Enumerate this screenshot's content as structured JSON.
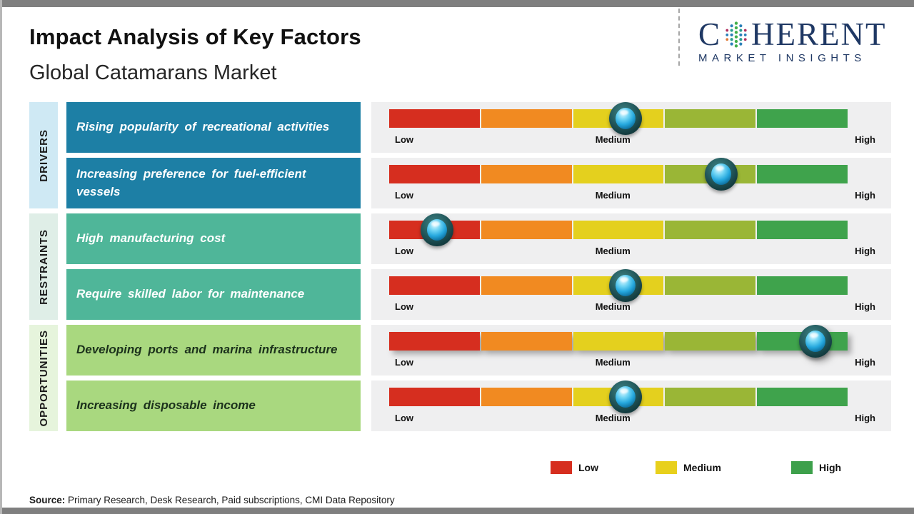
{
  "header": {
    "title": "Impact Analysis of Key Factors",
    "subtitle": "Global Catamarans Market",
    "logo": {
      "brand_first_letter": "C",
      "brand_rest": "HERENT",
      "tagline": "MARKET INSIGHTS",
      "brand_color": "#1f3864"
    }
  },
  "scale_labels": {
    "low": "Low",
    "medium": "Medium",
    "high": "High"
  },
  "categories": [
    {
      "id": "drivers",
      "label": "DRIVERS",
      "strip_color": "#cfe9f4",
      "box_color": "#1d7fa5",
      "text_color": "#ffffff"
    },
    {
      "id": "restraints",
      "label": "RESTRAINTS",
      "strip_color": "#dfeee7",
      "box_color": "#4fb699",
      "text_color": "#ffffff"
    },
    {
      "id": "opportunities",
      "label": "OPPORTUNITIES",
      "strip_color": "#e6f4dc",
      "box_color": "#a9d87f",
      "text_color": "#1c321c"
    }
  ],
  "bar": {
    "segment_names": [
      "red",
      "orange",
      "yellow",
      "olive",
      "green"
    ],
    "segment_colors": [
      "#d62e1f",
      "#f18a21",
      "#e4d01e",
      "#9ab636",
      "#3fa34c"
    ],
    "panel_color": "#efeff0"
  },
  "chart_data": {
    "type": "scatter",
    "title": "Impact Analysis of Key Factors",
    "subtitle": "Global Catamarans Market",
    "x_axis": {
      "scale": [
        "Low",
        "Medium",
        "High"
      ],
      "range_pct": [
        0,
        100
      ],
      "gridlines": false
    },
    "legend_position": "bottom-right",
    "points": [
      {
        "category": "Drivers",
        "factor": "Rising popularity of recreational activities",
        "impact_level": "Medium",
        "position_pct": 51.6,
        "shadow": false
      },
      {
        "category": "Drivers",
        "factor": "Increasing preference for fuel-efficient vessels",
        "impact_level": "Medium-High",
        "position_pct": 72.4,
        "shadow": false
      },
      {
        "category": "Restraints",
        "factor": "High manufacturing cost",
        "impact_level": "Low",
        "position_pct": 10.4,
        "shadow": false
      },
      {
        "category": "Restraints",
        "factor": "Require skilled labor for maintenance",
        "impact_level": "Medium",
        "position_pct": 51.6,
        "shadow": false
      },
      {
        "category": "Opportunities",
        "factor": "Developing ports and marina infrastructure",
        "impact_level": "High",
        "position_pct": 93.0,
        "shadow": true
      },
      {
        "category": "Opportunities",
        "factor": "Increasing disposable income",
        "impact_level": "Medium",
        "position_pct": 51.6,
        "shadow": false
      }
    ]
  },
  "legend": {
    "items": [
      {
        "label": "Low",
        "color": "#d62e1f"
      },
      {
        "label": "Medium",
        "color": "#e8d01c"
      },
      {
        "label": "High",
        "color": "#3da04b"
      }
    ]
  },
  "source": {
    "prefix": "Source:",
    "text": " Primary Research, Desk Research, Paid subscriptions, CMI Data Repository"
  }
}
